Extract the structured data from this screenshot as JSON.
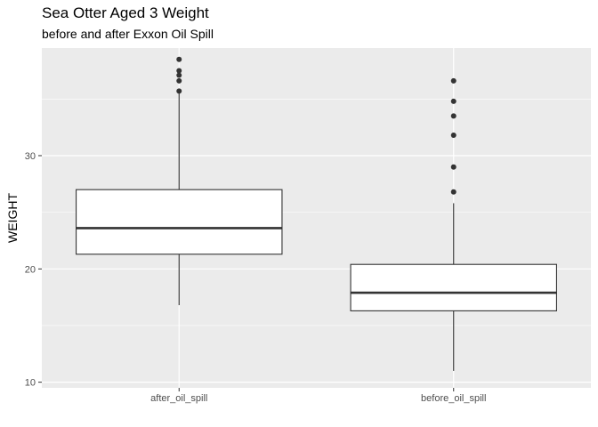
{
  "chart_data": {
    "type": "boxplot",
    "title": "Sea Otter Aged 3 Weight",
    "subtitle": "before and after Exxon Oil Spill",
    "xlabel": "",
    "ylabel": "WEIGHT",
    "categories": [
      "after_oil_spill",
      "before_oil_spill"
    ],
    "ylim": [
      9.5,
      39.5
    ],
    "yticks": [
      10,
      20,
      30
    ],
    "grid": true,
    "boxes": [
      {
        "category": "after_oil_spill",
        "whisker_low": 16.8,
        "q1": 21.3,
        "median": 23.6,
        "q3": 27.0,
        "whisker_high": 35.5,
        "outliers": [
          35.7,
          36.6,
          37.1,
          37.5,
          38.5
        ]
      },
      {
        "category": "before_oil_spill",
        "whisker_low": 11.0,
        "q1": 16.3,
        "median": 17.9,
        "q3": 20.4,
        "whisker_high": 25.8,
        "outliers": [
          26.8,
          29.0,
          31.8,
          33.5,
          34.8,
          36.6
        ]
      }
    ],
    "colors": {
      "panel": "#ebebeb",
      "grid": "#ffffff",
      "box_fill": "#ffffff",
      "box_line": "#333333"
    }
  }
}
